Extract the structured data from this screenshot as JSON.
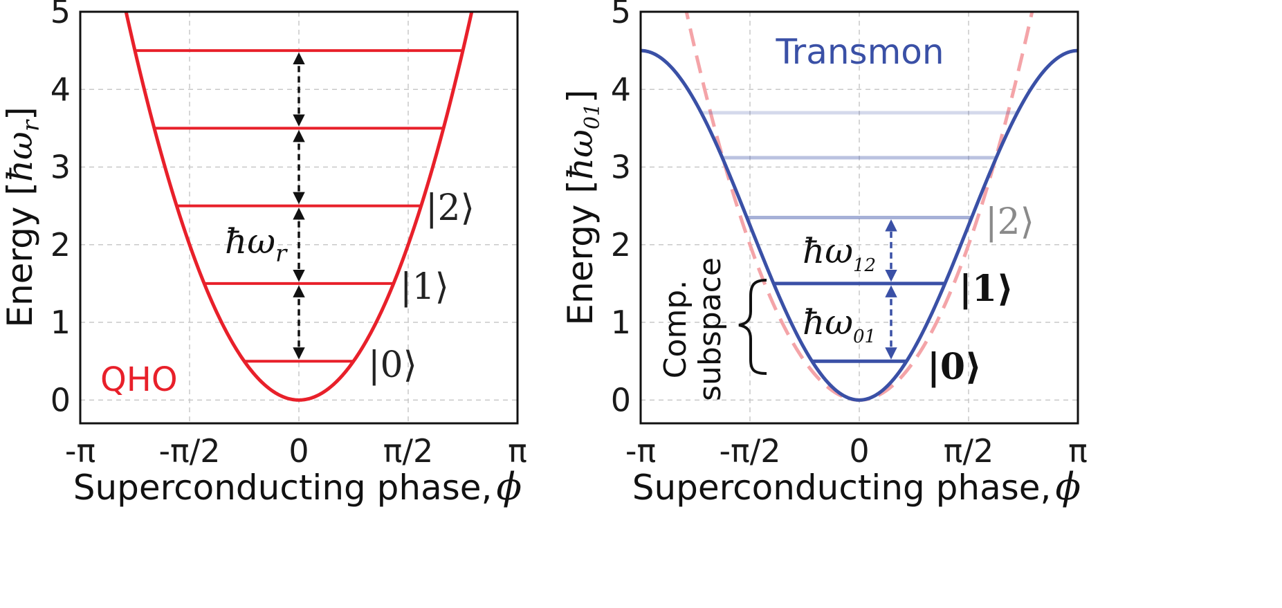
{
  "chart_data": [
    {
      "type": "line",
      "title": "",
      "xlabel": "Superconducting phase,",
      "xlabel_symbol": "ϕ",
      "ylabel_prefix": "Energy [",
      "ylabel_unit": "ħω",
      "ylabel_subscript": "r",
      "ylabel_suffix": "]",
      "xlim": [
        -3.14159,
        3.14159
      ],
      "ylim": [
        -0.3,
        5
      ],
      "xticks": [
        -3.14159,
        -1.5708,
        0,
        1.5708,
        3.14159
      ],
      "xtick_labels": [
        "-π",
        "-π/2",
        "0",
        "π/2",
        "π"
      ],
      "yticks": [
        0,
        1,
        2,
        3,
        4,
        5
      ],
      "ytick_labels": [
        "0",
        "1",
        "2",
        "3",
        "4",
        "5"
      ],
      "grid": true,
      "annotation": "QHO",
      "colors": {
        "potential": "#e8202a",
        "levels": "#e8202a",
        "arrows": "#111111",
        "annotation": "#e8202a"
      },
      "potential": {
        "name": "QHO",
        "formula": "E = 2 * phi^2 / (pi/2)^2",
        "phi_range": [
          -2.2,
          2.2
        ]
      },
      "levels": [
        0.5,
        1.5,
        2.5,
        3.5,
        4.5
      ],
      "level_labels": [
        "|0⟩",
        "|1⟩",
        "|2⟩"
      ],
      "spacing_label": "ħω",
      "spacing_subscript": "r"
    },
    {
      "type": "line",
      "title": "Transmon",
      "xlabel": "Superconducting phase,",
      "xlabel_symbol": "ϕ",
      "ylabel_prefix": "Energy [",
      "ylabel_unit": "ħω",
      "ylabel_subscript": "01",
      "ylabel_suffix": "]",
      "xlim": [
        -3.14159,
        3.14159
      ],
      "ylim": [
        -0.3,
        5
      ],
      "xticks": [
        -3.14159,
        -1.5708,
        0,
        1.5708,
        3.14159
      ],
      "xtick_labels": [
        "-π",
        "-π/2",
        "0",
        "π/2",
        "π"
      ],
      "yticks": [
        0,
        1,
        2,
        3,
        4,
        5
      ],
      "ytick_labels": [
        "0",
        "1",
        "2",
        "3",
        "4",
        "5"
      ],
      "grid": true,
      "colors": {
        "potential": "#3a50a6",
        "qho_dashed": "#f4a4a8",
        "levels": "#3a50a6",
        "label_gray": "#8a8a8a"
      },
      "potential": {
        "name": "Transmon",
        "formula": "E = 2.25 * (1 - cos(phi))"
      },
      "qho_reference": {
        "formula": "E = 2 * phi^2 / (pi/2)^2",
        "style": "dashed"
      },
      "levels": [
        {
          "energy": 0.5,
          "opacity": 1.0
        },
        {
          "energy": 1.5,
          "opacity": 1.0
        },
        {
          "energy": 2.35,
          "opacity": 0.45
        },
        {
          "energy": 3.12,
          "opacity": 0.35
        },
        {
          "energy": 3.7,
          "opacity": 0.22
        }
      ],
      "level_labels": [
        "|0⟩",
        "|1⟩",
        "|2⟩"
      ],
      "spacing_labels": [
        {
          "label": "ħω",
          "subscript": "01"
        },
        {
          "label": "ħω",
          "subscript": "12"
        }
      ],
      "brace_label_line1": "Comp.",
      "brace_label_line2": "subspace"
    }
  ]
}
